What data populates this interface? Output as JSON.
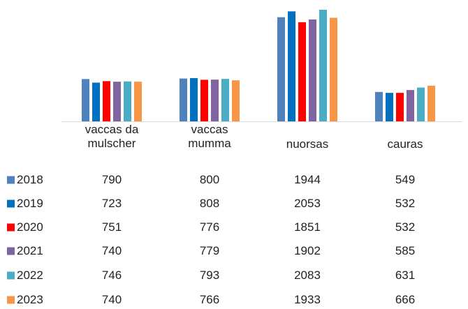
{
  "chart_data": {
    "type": "bar",
    "categories": [
      "vaccas da\nmulscher",
      "vaccas\nmumma",
      "nuorsas",
      "cauras"
    ],
    "series": [
      {
        "name": "2018",
        "color": "#4f81bd",
        "values": [
          790,
          800,
          1944,
          549
        ]
      },
      {
        "name": "2019",
        "color": "#0070c0",
        "values": [
          723,
          808,
          2053,
          532
        ]
      },
      {
        "name": "2020",
        "color": "#ff0000",
        "values": [
          751,
          776,
          1851,
          532
        ]
      },
      {
        "name": "2021",
        "color": "#8064a2",
        "values": [
          740,
          779,
          1902,
          585
        ]
      },
      {
        "name": "2022",
        "color": "#4bacc6",
        "values": [
          746,
          793,
          2083,
          631
        ]
      },
      {
        "name": "2023",
        "color": "#f79646",
        "values": [
          740,
          766,
          1933,
          666
        ]
      }
    ]
  }
}
